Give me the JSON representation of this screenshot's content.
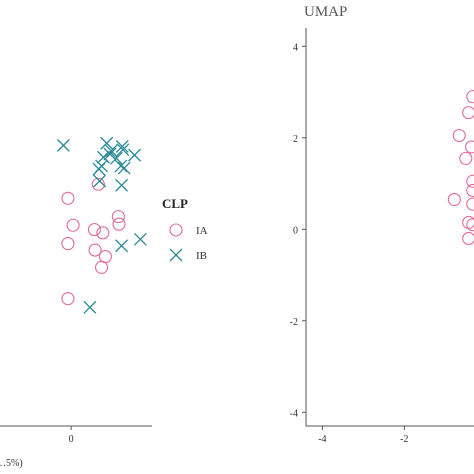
{
  "colors": {
    "IA": "#e0699a",
    "IB": "#2a8a98"
  },
  "legend": {
    "title": "CLP",
    "items": [
      {
        "label": "IA",
        "marker": "circle"
      },
      {
        "label": "IB",
        "marker": "x"
      }
    ]
  },
  "chart_data": [
    {
      "type": "scatter",
      "title": "",
      "xlabel": "…5%)",
      "ylabel": "",
      "grid": false,
      "legend_position": "right",
      "xlim": [
        -1.1,
        1.25
      ],
      "ylim": [
        -1.9,
        0.75
      ],
      "xticks": [
        0
      ],
      "x_tick_labels": [
        "0"
      ],
      "series": [
        {
          "name": "IA",
          "marker": "circle",
          "points": [
            [
              -0.05,
              0.21
            ],
            [
              0.03,
              -0.04
            ],
            [
              -0.05,
              -0.21
            ],
            [
              -0.05,
              -0.72
            ],
            [
              0.42,
              0.34
            ],
            [
              0.36,
              -0.08
            ],
            [
              0.49,
              -0.11
            ],
            [
              0.74,
              -0.03
            ],
            [
              0.37,
              -0.27
            ],
            [
              0.53,
              -0.33
            ],
            [
              0.47,
              -0.43
            ],
            [
              0.73,
              0.04
            ]
          ]
        },
        {
          "name": "IB",
          "marker": "x",
          "points": [
            [
              -0.12,
              0.7
            ],
            [
              0.55,
              0.72
            ],
            [
              0.6,
              0.62
            ],
            [
              0.79,
              0.69
            ],
            [
              0.8,
              0.66
            ],
            [
              0.98,
              0.61
            ],
            [
              0.5,
              0.59
            ],
            [
              0.43,
              0.48
            ],
            [
              0.77,
              0.51
            ],
            [
              0.82,
              0.49
            ],
            [
              0.44,
              0.37
            ],
            [
              0.78,
              0.33
            ],
            [
              0.29,
              -0.8
            ],
            [
              0.78,
              -0.23
            ],
            [
              1.07,
              -0.17
            ],
            [
              0.47,
              0.51
            ],
            [
              0.62,
              0.65
            ],
            [
              0.7,
              0.58
            ]
          ]
        }
      ]
    },
    {
      "type": "scatter",
      "title": "UMAP",
      "xlabel": "",
      "ylabel": "",
      "grid": false,
      "xlim": [
        -4.4,
        -0.3
      ],
      "ylim": [
        -4.3,
        4.4
      ],
      "xticks": [
        -4,
        -2
      ],
      "x_tick_labels": [
        "-4",
        "-2"
      ],
      "yticks": [
        4,
        2,
        0,
        -2,
        -4
      ],
      "y_tick_labels": [
        "4",
        "2",
        "0",
        "-2",
        "-4"
      ],
      "series": [
        {
          "name": "IA",
          "marker": "circle",
          "points": [
            [
              -0.43,
              2.55
            ],
            [
              -0.66,
              2.05
            ],
            [
              -0.5,
              1.55
            ],
            [
              -0.36,
              1.8
            ],
            [
              -0.33,
              1.05
            ],
            [
              -0.33,
              0.85
            ],
            [
              -0.78,
              0.65
            ],
            [
              -0.43,
              0.15
            ],
            [
              -0.43,
              -0.2
            ],
            [
              -0.33,
              0.55
            ],
            [
              -0.33,
              0.1
            ],
            [
              -0.33,
              2.9
            ]
          ]
        }
      ]
    }
  ]
}
